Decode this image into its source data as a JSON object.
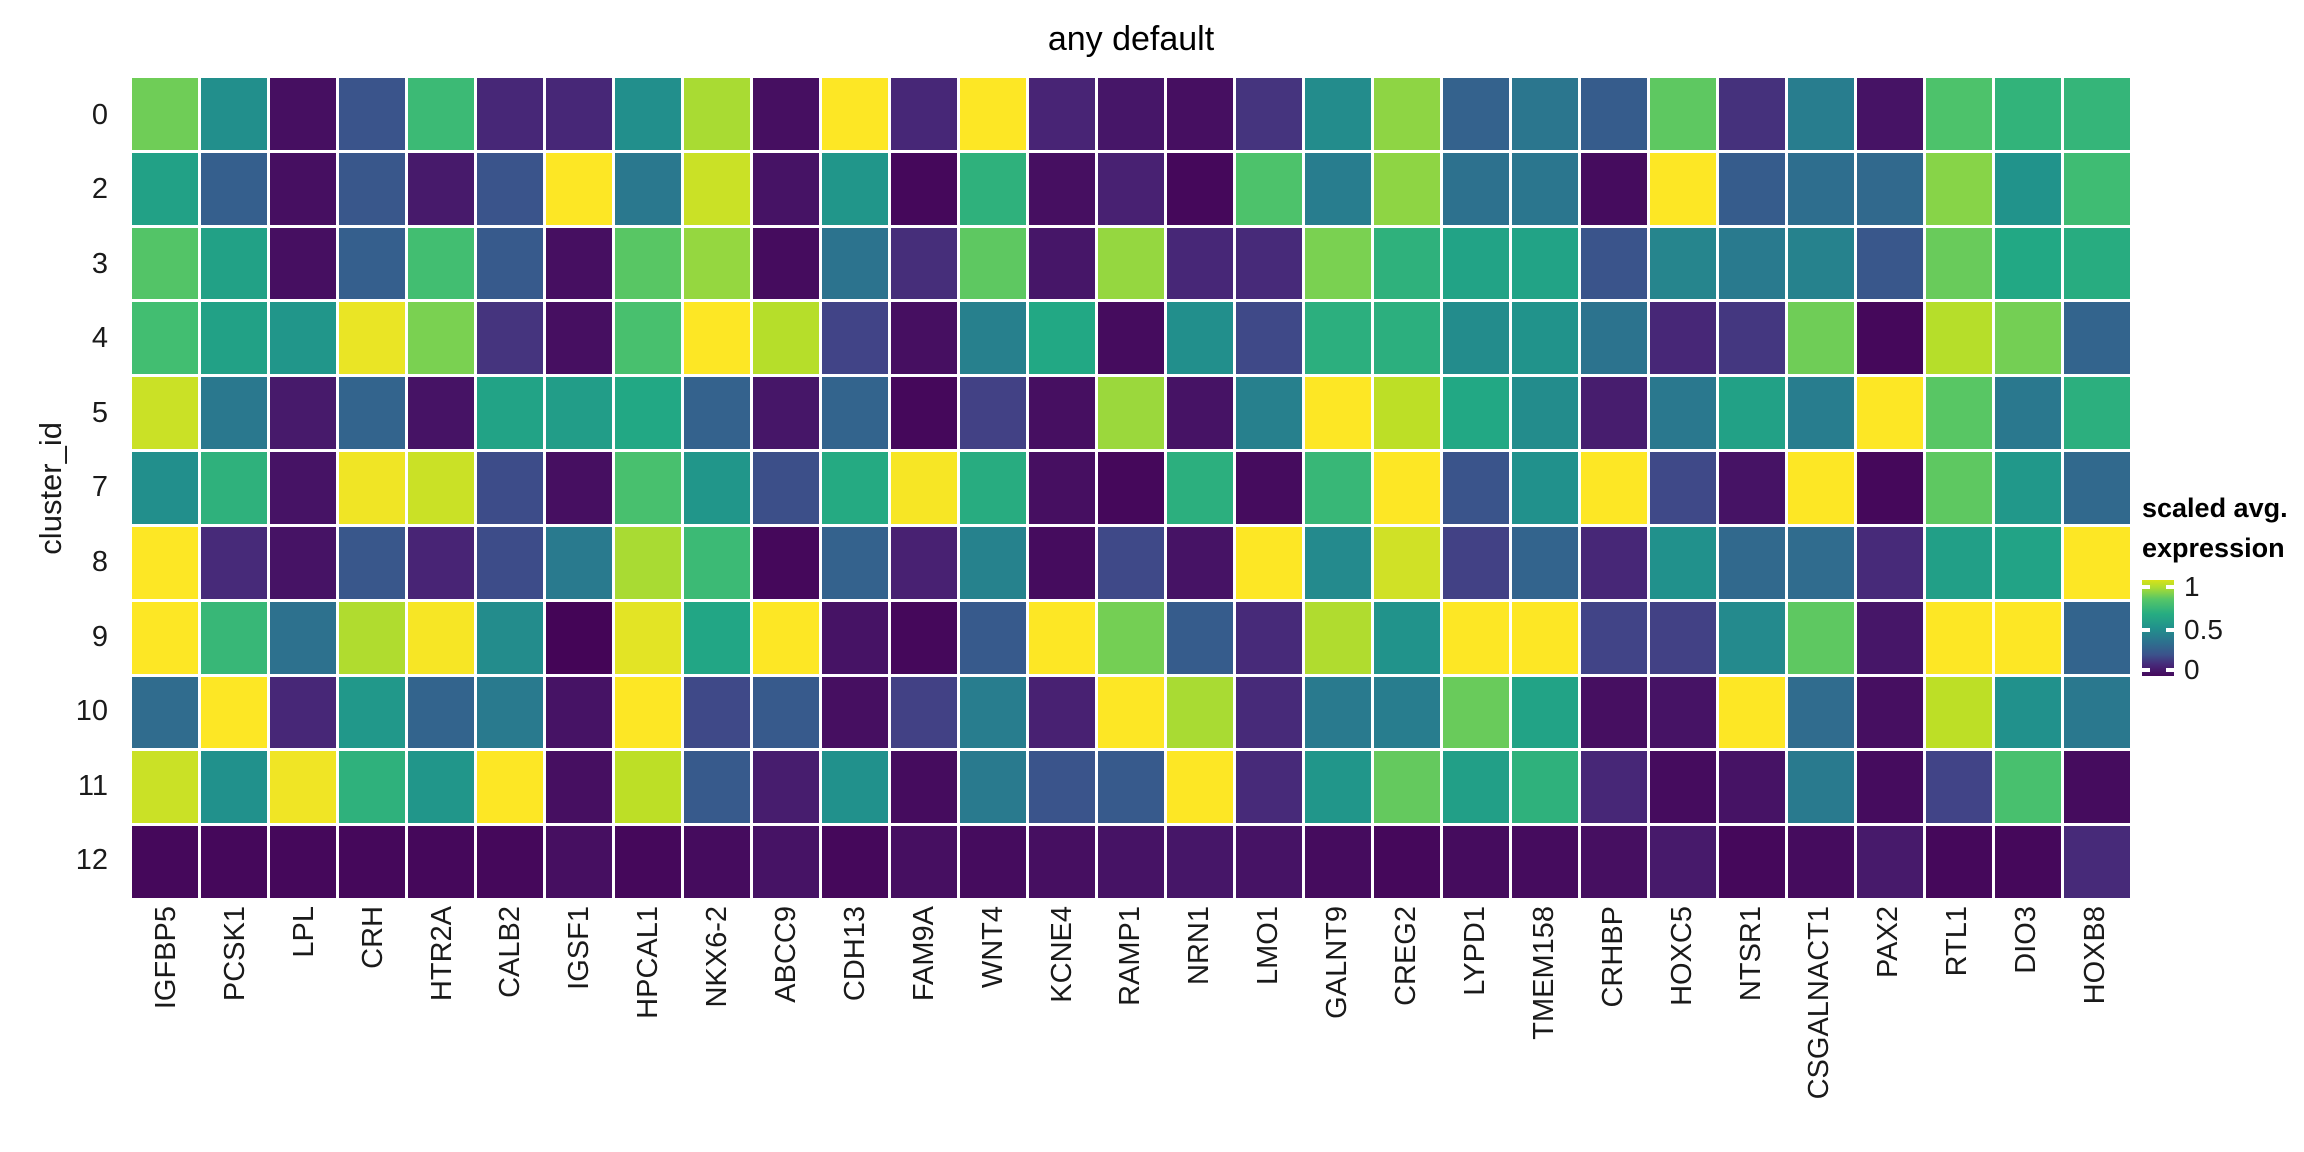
{
  "title": "any default",
  "y_axis": {
    "label": "cluster_id"
  },
  "legend": {
    "title_line1": "scaled avg.",
    "title_line2": "expression",
    "ticks": [
      {
        "label": "1",
        "pos_pct": 7
      },
      {
        "label": "0.5",
        "pos_pct": 52
      },
      {
        "label": "0",
        "pos_pct": 94
      }
    ],
    "gradient_stops": [
      [
        "0%",
        "#d8e219"
      ],
      [
        "8%",
        "#aadc32"
      ],
      [
        "20%",
        "#56c667"
      ],
      [
        "35%",
        "#27ad81"
      ],
      [
        "50%",
        "#21918c"
      ],
      [
        "65%",
        "#2d708e"
      ],
      [
        "78%",
        "#3b528b"
      ],
      [
        "88%",
        "#462a79"
      ],
      [
        "100%",
        "#45085c"
      ]
    ]
  },
  "colors": {
    "background": "#ffffff",
    "grid_gap": "#ffffff",
    "text": "#1a1a1a",
    "viridis_low": "#440154",
    "viridis_mid": "#21918c",
    "viridis_high": "#fde725"
  },
  "chart_data": {
    "type": "heatmap",
    "title": "any default",
    "ylabel": "cluster_id",
    "legend_title": "scaled avg. expression",
    "colormap": "viridis",
    "value_range": [
      0,
      1
    ],
    "rows": [
      "0",
      "2",
      "3",
      "4",
      "5",
      "7",
      "8",
      "9",
      "10",
      "11",
      "12"
    ],
    "columns": [
      "IGFBP5",
      "PCSK1",
      "LPL",
      "CRH",
      "HTR2A",
      "CALB2",
      "IGSF1",
      "HPCAL1",
      "NKX6-2",
      "ABCC9",
      "CDH13",
      "FAM9A",
      "WNT4",
      "KCNE4",
      "RAMP1",
      "NRN1",
      "LMO1",
      "GALNT9",
      "CREG2",
      "LYPD1",
      "TMEM158",
      "CRHBP",
      "HOXC5",
      "NTSR1",
      "CSGALNACT1",
      "PAX2",
      "RTL1",
      "DIO3",
      "HOXB8"
    ],
    "values": [
      [
        0.78,
        0.49,
        0.04,
        0.26,
        0.68,
        0.11,
        0.11,
        0.49,
        0.87,
        0.04,
        1.0,
        0.11,
        1.0,
        0.1,
        0.06,
        0.04,
        0.15,
        0.48,
        0.83,
        0.31,
        0.39,
        0.29,
        0.75,
        0.14,
        0.42,
        0.05,
        0.72,
        0.65,
        0.66
      ],
      [
        0.57,
        0.3,
        0.04,
        0.27,
        0.07,
        0.26,
        1.0,
        0.4,
        0.92,
        0.05,
        0.52,
        0.02,
        0.64,
        0.04,
        0.09,
        0.02,
        0.72,
        0.42,
        0.83,
        0.37,
        0.39,
        0.03,
        1.0,
        0.29,
        0.36,
        0.34,
        0.82,
        0.51,
        0.69
      ],
      [
        0.73,
        0.57,
        0.04,
        0.3,
        0.7,
        0.28,
        0.04,
        0.74,
        0.84,
        0.03,
        0.38,
        0.13,
        0.75,
        0.06,
        0.84,
        0.11,
        0.12,
        0.8,
        0.64,
        0.58,
        0.58,
        0.26,
        0.45,
        0.41,
        0.44,
        0.27,
        0.77,
        0.6,
        0.62
      ],
      [
        0.7,
        0.57,
        0.52,
        0.97,
        0.8,
        0.15,
        0.04,
        0.71,
        1.0,
        0.89,
        0.2,
        0.04,
        0.43,
        0.6,
        0.03,
        0.49,
        0.22,
        0.63,
        0.63,
        0.48,
        0.51,
        0.38,
        0.11,
        0.16,
        0.78,
        0.02,
        0.89,
        0.79,
        0.32
      ],
      [
        0.92,
        0.4,
        0.07,
        0.32,
        0.05,
        0.58,
        0.55,
        0.6,
        0.31,
        0.06,
        0.32,
        0.02,
        0.19,
        0.04,
        0.85,
        0.05,
        0.43,
        1.0,
        0.9,
        0.6,
        0.48,
        0.08,
        0.4,
        0.57,
        0.42,
        1.0,
        0.74,
        0.4,
        0.63
      ],
      [
        0.49,
        0.64,
        0.05,
        0.98,
        0.92,
        0.23,
        0.04,
        0.71,
        0.52,
        0.24,
        0.61,
        0.99,
        0.62,
        0.04,
        0.02,
        0.63,
        0.03,
        0.67,
        1.0,
        0.26,
        0.5,
        1.0,
        0.22,
        0.05,
        1.0,
        0.02,
        0.75,
        0.53,
        0.34
      ],
      [
        1.0,
        0.12,
        0.05,
        0.27,
        0.1,
        0.23,
        0.41,
        0.87,
        0.68,
        0.02,
        0.31,
        0.09,
        0.44,
        0.03,
        0.22,
        0.05,
        1.0,
        0.47,
        0.93,
        0.19,
        0.32,
        0.11,
        0.5,
        0.34,
        0.35,
        0.12,
        0.56,
        0.58,
        1.0
      ],
      [
        1.0,
        0.67,
        0.37,
        0.88,
        0.99,
        0.48,
        0.01,
        0.96,
        0.59,
        1.0,
        0.05,
        0.02,
        0.28,
        1.0,
        0.79,
        0.29,
        0.12,
        0.88,
        0.51,
        1.0,
        1.0,
        0.2,
        0.19,
        0.47,
        0.75,
        0.06,
        1.0,
        1.0,
        0.32
      ],
      [
        0.35,
        1.0,
        0.11,
        0.53,
        0.32,
        0.41,
        0.05,
        1.0,
        0.22,
        0.28,
        0.04,
        0.19,
        0.42,
        0.09,
        1.0,
        0.87,
        0.12,
        0.41,
        0.42,
        0.77,
        0.58,
        0.04,
        0.05,
        1.0,
        0.35,
        0.04,
        0.9,
        0.5,
        0.4
      ],
      [
        0.92,
        0.5,
        0.98,
        0.64,
        0.52,
        1.0,
        0.04,
        0.9,
        0.28,
        0.08,
        0.5,
        0.03,
        0.41,
        0.26,
        0.28,
        1.0,
        0.12,
        0.52,
        0.76,
        0.56,
        0.64,
        0.11,
        0.03,
        0.05,
        0.41,
        0.03,
        0.2,
        0.71,
        0.03
      ],
      [
        0.02,
        0.02,
        0.02,
        0.02,
        0.02,
        0.02,
        0.04,
        0.02,
        0.03,
        0.05,
        0.02,
        0.04,
        0.03,
        0.04,
        0.05,
        0.06,
        0.05,
        0.03,
        0.02,
        0.03,
        0.03,
        0.04,
        0.07,
        0.02,
        0.03,
        0.07,
        0.02,
        0.02,
        0.12
      ]
    ]
  }
}
